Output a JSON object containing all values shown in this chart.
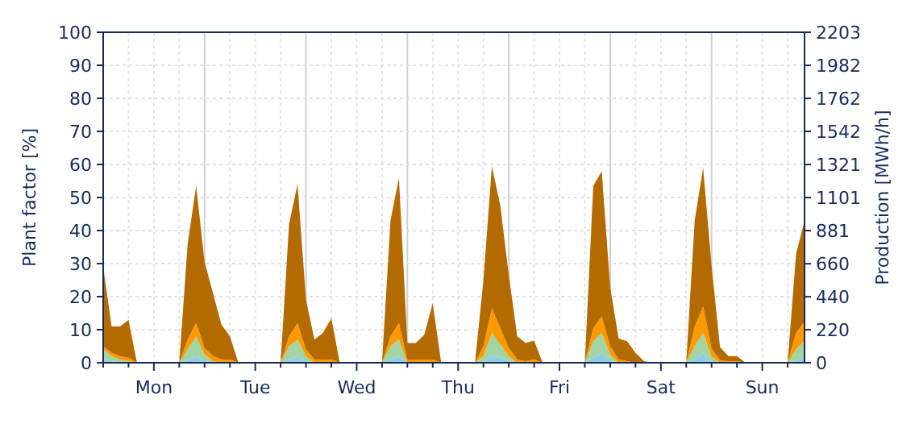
{
  "chart_data": {
    "type": "area",
    "stacked": true,
    "ylabel": "Plant factor [%]",
    "y2label": "Production [MWh/h]",
    "categories": [
      null,
      null,
      null,
      null,
      null,
      null,
      "Mon",
      null,
      null,
      null,
      null,
      null,
      null,
      null,
      null,
      null,
      null,
      null,
      "Tue",
      null,
      null,
      null,
      null,
      null,
      null,
      null,
      null,
      null,
      null,
      null,
      "Wed",
      null,
      null,
      null,
      null,
      null,
      null,
      null,
      null,
      null,
      null,
      null,
      "Thu",
      null,
      null,
      null,
      null,
      null,
      null,
      null,
      null,
      null,
      null,
      null,
      "Fri",
      null,
      null,
      null,
      null,
      null,
      null,
      null,
      null,
      null,
      null,
      null,
      "Sat",
      null,
      null,
      null,
      null,
      null,
      null,
      null,
      null,
      null,
      null,
      null,
      "Sun",
      null,
      null,
      null,
      null,
      null
    ],
    "series": [
      {
        "color": "#8ecfe8",
        "values": [
          1,
          0.5,
          0,
          0,
          0,
          0,
          0,
          0,
          0,
          0,
          1,
          2,
          0.5,
          0,
          0,
          0,
          0,
          0,
          0,
          0,
          0,
          0,
          1,
          2,
          0.5,
          0,
          0,
          0,
          0,
          0,
          0,
          0,
          0,
          0,
          1,
          2,
          0,
          0,
          0,
          0,
          0,
          0,
          0,
          0,
          0,
          0,
          2.5,
          1.5,
          0.5,
          0,
          0,
          0,
          0,
          0,
          0,
          0,
          0,
          0,
          1.5,
          3,
          0.5,
          0,
          0,
          0,
          0,
          0,
          0,
          0,
          0,
          0,
          1,
          3,
          0.3,
          0,
          0,
          0,
          0,
          0,
          0,
          0,
          0,
          0,
          0.5,
          1.5
        ]
      },
      {
        "color": "#a3d4a3",
        "values": [
          3,
          1.5,
          1,
          0.5,
          0,
          0,
          0,
          0,
          0,
          0,
          3,
          6,
          2,
          0.5,
          0,
          0,
          0,
          0,
          0,
          0,
          0,
          0,
          4,
          5,
          1.5,
          0,
          0,
          0,
          0,
          0,
          0,
          0,
          0,
          0,
          4,
          5,
          0,
          0,
          0,
          0,
          0,
          0,
          0,
          0,
          0,
          2,
          6.5,
          4,
          1.5,
          0,
          0,
          0,
          0,
          0,
          0,
          0,
          0,
          0,
          5,
          6,
          2,
          0,
          0,
          0,
          0,
          0,
          0,
          0,
          0,
          0,
          4,
          6,
          1.5,
          0,
          0,
          0,
          0,
          0,
          0,
          0,
          0,
          0,
          3.5,
          5
        ]
      },
      {
        "color": "#ff9900",
        "values": [
          1,
          1,
          1,
          1,
          0,
          0,
          0,
          0,
          0,
          0,
          3,
          4,
          2,
          1.5,
          1,
          1,
          0,
          0,
          0,
          0,
          0,
          0,
          3,
          5,
          2,
          1,
          1,
          1,
          0,
          0,
          0,
          0,
          0,
          0,
          3,
          5,
          1,
          1,
          1,
          1,
          0,
          0,
          0,
          0,
          0,
          3,
          7.5,
          5,
          2.5,
          1,
          0.5,
          1,
          0,
          0,
          0,
          0,
          0,
          0,
          4,
          5,
          2.5,
          1,
          0.5,
          0,
          0,
          0,
          0,
          0,
          0,
          0,
          6,
          8,
          2.5,
          0.7,
          0.5,
          0.5,
          0,
          0,
          0,
          0,
          0,
          0,
          5,
          6
        ]
      },
      {
        "color": "#b36b00",
        "values": [
          24,
          8,
          9,
          11.5,
          0,
          0,
          0,
          0,
          0,
          0,
          29,
          41.5,
          26,
          19,
          10.5,
          7,
          0,
          0,
          0,
          0,
          0,
          0,
          34,
          42,
          15,
          6,
          8,
          12.5,
          0,
          0,
          0,
          0,
          0,
          0,
          35,
          44,
          5,
          5,
          7.5,
          17,
          0,
          0,
          0,
          0,
          0,
          20,
          43,
          37,
          22,
          7,
          5.5,
          5.7,
          0,
          0,
          0,
          0,
          0,
          0,
          43,
          44,
          18,
          6.3,
          6,
          3,
          0.5,
          0,
          0,
          0,
          0,
          0,
          32,
          42,
          25,
          4,
          1.5,
          1.5,
          0,
          0,
          0,
          0,
          0,
          0,
          24,
          30.5
        ]
      }
    ],
    "ylim": [
      0,
      100
    ],
    "yticks": [
      0,
      10,
      20,
      30,
      40,
      50,
      60,
      70,
      80,
      90,
      100
    ],
    "y2lim": [
      0,
      2203
    ],
    "y2ticks": [
      0,
      220,
      440,
      660,
      881,
      1101,
      1321,
      1542,
      1762,
      1982,
      2203
    ],
    "grid": true
  }
}
